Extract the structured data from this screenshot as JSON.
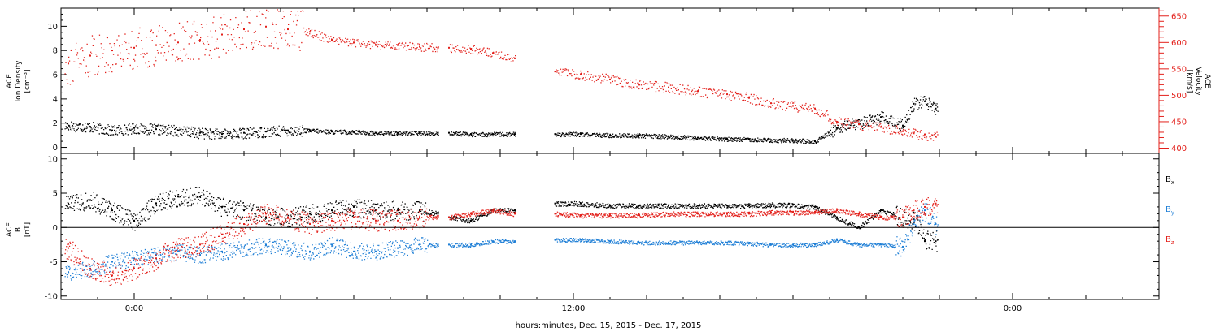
{
  "figure": {
    "xlabel": "hours:minutes, Dec. 15, 2015 - Dec. 17, 2015",
    "x_tick_labels": [
      "0:00",
      "12:00",
      "0:00"
    ]
  },
  "panels": {
    "top": {
      "left_axis_label_lines": [
        "ACE",
        "Ion Density",
        "[cm⁻³]"
      ],
      "right_axis_label_lines": [
        "ACE",
        "Velocity",
        "[km/s]"
      ]
    },
    "bottom": {
      "axis_label_lines": [
        "ACE",
        "B",
        "[nT]"
      ],
      "legend": [
        {
          "base": "B",
          "sub": "x",
          "color": "#000000"
        },
        {
          "base": "B",
          "sub": "y",
          "color": "#1f7fd6"
        },
        {
          "base": "B",
          "sub": "z",
          "color": "#e3201b"
        }
      ]
    }
  },
  "colors": {
    "density": "#000000",
    "velocity": "#e3201b",
    "bx": "#000000",
    "by": "#1f7fd6",
    "bz": "#e3201b"
  },
  "chart_data": [
    {
      "type": "scatter",
      "x_unit": "hours since Dec. 15, 2015 0:00",
      "xlim": [
        -2.0,
        28.0
      ],
      "x_ticks": [
        0,
        12,
        24
      ],
      "ylabel": "ACE Ion Density [cm⁻³]",
      "y2label": "ACE Velocity [km/s]",
      "ylim": [
        -0.5,
        11.5
      ],
      "y_ticks": [
        0,
        2,
        4,
        6,
        8,
        10
      ],
      "y2lim": [
        390,
        665
      ],
      "y2_ticks": [
        400,
        450,
        500,
        550,
        600,
        650
      ],
      "gaps": [
        [
          8.3,
          8.6
        ],
        [
          10.4,
          11.5
        ]
      ],
      "series": [
        {
          "key": "density",
          "axis": "left",
          "x": [
            -1.8,
            -1.2,
            -0.6,
            0.0,
            0.6,
            1.2,
            1.8,
            2.4,
            3.0,
            3.6,
            4.2,
            4.8,
            5.4,
            6.0,
            6.6,
            7.2,
            7.8,
            8.3,
            8.6,
            9.2,
            9.8,
            10.4,
            11.5,
            12.2,
            13.0,
            13.8,
            14.6,
            15.4,
            16.2,
            16.8,
            17.4,
            18.0,
            18.6,
            19.2,
            19.8,
            20.4,
            21.0,
            21.3,
            21.6,
            21.9
          ],
          "y": [
            1.8,
            1.7,
            1.4,
            1.6,
            1.5,
            1.4,
            1.2,
            1.1,
            1.2,
            1.3,
            1.4,
            1.4,
            1.3,
            1.3,
            1.2,
            1.2,
            1.2,
            1.2,
            1.2,
            1.1,
            1.1,
            1.1,
            1.1,
            1.1,
            1.0,
            1.0,
            0.9,
            0.8,
            0.7,
            0.7,
            0.6,
            0.6,
            0.5,
            1.6,
            2.0,
            2.5,
            1.8,
            3.6,
            3.8,
            3.2
          ]
        },
        {
          "key": "velocity",
          "axis": "right",
          "x": [
            -1.8,
            -1.2,
            -0.6,
            0.0,
            0.6,
            1.2,
            1.8,
            2.4,
            3.0,
            3.6,
            4.2,
            4.8,
            5.4,
            6.0,
            6.6,
            7.2,
            7.8,
            8.3,
            8.6,
            9.2,
            9.8,
            10.4,
            11.5,
            12.2,
            13.0,
            13.8,
            14.6,
            15.4,
            16.2,
            16.8,
            17.4,
            18.0,
            18.6,
            19.2,
            19.8,
            20.4,
            21.0,
            21.3,
            21.6,
            21.9
          ],
          "y": [
            560,
            575,
            585,
            590,
            595,
            600,
            605,
            615,
            625,
            630,
            625,
            620,
            605,
            600,
            595,
            595,
            592,
            590,
            590,
            588,
            580,
            570,
            545,
            540,
            530,
            520,
            515,
            508,
            502,
            495,
            485,
            480,
            475,
            450,
            445,
            440,
            432,
            428,
            426,
            422
          ]
        }
      ]
    },
    {
      "type": "scatter",
      "x_unit": "hours since Dec. 15, 2015 0:00",
      "xlim": [
        -2.0,
        28.0
      ],
      "x_ticks": [
        0,
        12,
        24
      ],
      "ylabel": "ACE B [nT]",
      "ylim": [
        -10.5,
        10.8
      ],
      "y_ticks": [
        -10,
        -5,
        0,
        5,
        10
      ],
      "zero_line": true,
      "gaps": [
        [
          8.3,
          8.6
        ],
        [
          10.4,
          11.5
        ]
      ],
      "series": [
        {
          "key": "bx",
          "x": [
            -1.8,
            -1.2,
            -0.6,
            0.0,
            0.6,
            1.2,
            1.8,
            2.4,
            3.0,
            3.6,
            4.2,
            4.8,
            5.4,
            6.0,
            6.6,
            7.2,
            7.8,
            8.3,
            8.6,
            9.2,
            9.8,
            10.4,
            11.5,
            12.2,
            13.0,
            13.8,
            14.6,
            15.4,
            16.2,
            16.8,
            17.4,
            18.0,
            18.6,
            19.2,
            19.8,
            20.4,
            21.0,
            21.3,
            21.6,
            21.9
          ],
          "y": [
            3.5,
            4.0,
            2.5,
            1.0,
            3.5,
            4.5,
            4.5,
            3.0,
            2.5,
            1.5,
            1.5,
            2.0,
            2.5,
            3.0,
            2.5,
            2.5,
            2.5,
            2.0,
            1.5,
            1.0,
            2.5,
            2.5,
            3.5,
            3.5,
            3.2,
            3.2,
            3.2,
            3.2,
            3.2,
            3.2,
            3.3,
            3.3,
            3.0,
            1.5,
            0.0,
            2.5,
            1.5,
            1.2,
            -2.0,
            -2.0
          ]
        },
        {
          "key": "by",
          "x": [
            -1.8,
            -1.2,
            -0.6,
            0.0,
            0.6,
            1.2,
            1.8,
            2.4,
            3.0,
            3.6,
            4.2,
            4.8,
            5.4,
            6.0,
            6.6,
            7.2,
            7.8,
            8.3,
            8.6,
            9.2,
            9.8,
            10.4,
            11.5,
            12.2,
            13.0,
            13.8,
            14.6,
            15.4,
            16.2,
            16.8,
            17.4,
            18.0,
            18.6,
            19.2,
            19.8,
            20.4,
            21.0,
            21.3,
            21.6,
            21.9
          ],
          "y": [
            -6.5,
            -6.0,
            -5.0,
            -4.5,
            -4.0,
            -3.5,
            -4.0,
            -3.5,
            -3.0,
            -2.5,
            -3.0,
            -3.5,
            -2.5,
            -3.5,
            -3.5,
            -3.0,
            -2.5,
            -2.5,
            -2.5,
            -2.5,
            -2.0,
            -2.0,
            -1.8,
            -1.8,
            -2.0,
            -2.2,
            -2.2,
            -2.2,
            -2.2,
            -2.3,
            -2.5,
            -2.5,
            -2.5,
            -1.8,
            -2.5,
            -2.5,
            -2.8,
            0.5,
            2.5,
            0.5
          ]
        },
        {
          "key": "bz",
          "x": [
            -1.8,
            -1.2,
            -0.6,
            0.0,
            0.6,
            1.2,
            1.8,
            2.4,
            3.0,
            3.6,
            4.2,
            4.8,
            5.4,
            6.0,
            6.6,
            7.2,
            7.8,
            8.3,
            8.6,
            9.2,
            9.8,
            10.4,
            11.5,
            12.2,
            13.0,
            13.8,
            14.6,
            15.4,
            16.2,
            16.8,
            17.4,
            18.0,
            18.6,
            19.2,
            19.8,
            20.4,
            21.0,
            21.3,
            21.6,
            21.9
          ],
          "y": [
            -3.0,
            -6.0,
            -7.0,
            -6.0,
            -4.5,
            -3.0,
            -2.5,
            -1.0,
            0.5,
            2.0,
            1.5,
            0.5,
            1.0,
            1.5,
            1.0,
            1.0,
            1.5,
            1.5,
            1.5,
            2.0,
            2.5,
            2.0,
            2.0,
            1.8,
            1.8,
            1.8,
            2.0,
            2.0,
            2.0,
            2.0,
            2.2,
            2.2,
            2.3,
            2.5,
            2.0,
            1.5,
            1.5,
            2.5,
            3.0,
            3.5
          ]
        }
      ]
    }
  ]
}
